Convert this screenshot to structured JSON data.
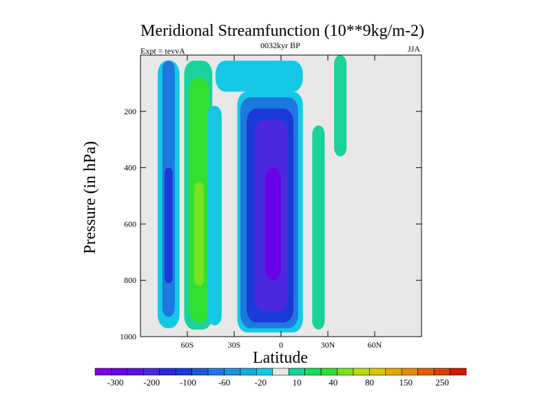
{
  "chart_data": {
    "type": "heatmap",
    "title": "Meridional Streamfunction (10**9kg/m-2)",
    "subtitle_left": "Expt = tevvA",
    "subtitle_center": "0032kyr BP",
    "subtitle_right": "JJA",
    "xlabel": "Latitude",
    "ylabel": "Pressure (in hPa)",
    "x_ticks": [
      {
        "value": -60,
        "label": "60S"
      },
      {
        "value": -30,
        "label": "30S"
      },
      {
        "value": 0,
        "label": "0"
      },
      {
        "value": 30,
        "label": "30N"
      },
      {
        "value": 60,
        "label": "60N"
      }
    ],
    "y_ticks": [
      200,
      400,
      600,
      800,
      1000
    ],
    "xlim": [
      -90,
      90
    ],
    "ylim": [
      1000,
      0
    ],
    "colorbar": {
      "levels": [
        "-300",
        "-200",
        "-100",
        "-60",
        "-20",
        "10",
        "40",
        "80",
        "150",
        "250"
      ],
      "colors": [
        "#7d00e0",
        "#6a00e6",
        "#5a14e0",
        "#4a28dc",
        "#2a28d6",
        "#1a3ad8",
        "#1a5ad8",
        "#1f78de",
        "#2290e0",
        "#1aaade",
        "#14c8e6",
        "#e8e8e8",
        "#1ad29a",
        "#18dc5a",
        "#30e030",
        "#7ce022",
        "#b8dc10",
        "#dcc600",
        "#e6a800",
        "#e68800",
        "#e06000",
        "#d84000",
        "#d21a00"
      ]
    },
    "background_color": "#e8e8e8",
    "regions": [
      {
        "name": "far-south-cell",
        "lat": [
          -79,
          -65
        ],
        "p": [
          20,
          970
        ],
        "value": -20
      },
      {
        "name": "far-south-cell-core",
        "lat": [
          -76,
          -68
        ],
        "p": [
          20,
          930
        ],
        "value": -60
      },
      {
        "name": "far-south-cell-inner",
        "lat": [
          -74.5,
          -69.5
        ],
        "p": [
          400,
          810
        ],
        "value": -100
      },
      {
        "name": "south-positive-cell",
        "lat": [
          -62,
          -44
        ],
        "p": [
          20,
          975
        ],
        "value": 10
      },
      {
        "name": "south-positive-cell-core",
        "lat": [
          -59,
          -46
        ],
        "p": [
          80,
          950
        ],
        "value": 40
      },
      {
        "name": "south-positive-cell-max",
        "lat": [
          -55.5,
          -49.5
        ],
        "p": [
          450,
          820
        ],
        "value": 80
      },
      {
        "name": "mid-shoulder",
        "lat": [
          -47,
          -38
        ],
        "p": [
          180,
          960
        ],
        "value": -20
      },
      {
        "name": "upper-tongue",
        "lat": [
          -42,
          14
        ],
        "p": [
          20,
          130
        ],
        "value": -20
      },
      {
        "name": "main-cell-outer",
        "lat": [
          -28,
          14
        ],
        "p": [
          130,
          985
        ],
        "value": -20
      },
      {
        "name": "main-cell-60",
        "lat": [
          -26,
          11
        ],
        "p": [
          150,
          970
        ],
        "value": -60
      },
      {
        "name": "main-cell-100",
        "lat": [
          -22,
          8
        ],
        "p": [
          190,
          950
        ],
        "value": -100
      },
      {
        "name": "main-cell-200",
        "lat": [
          -17,
          4.5
        ],
        "p": [
          230,
          910
        ],
        "value": -200
      },
      {
        "name": "main-cell-300",
        "lat": [
          -10,
          0
        ],
        "p": [
          400,
          800
        ],
        "value": -300
      },
      {
        "name": "tropical-north-band",
        "lat": [
          20,
          28
        ],
        "p": [
          250,
          975
        ],
        "value": 10
      },
      {
        "name": "far-north-band",
        "lat": [
          34,
          42
        ],
        "p": [
          0,
          360
        ],
        "value": 10
      }
    ]
  }
}
